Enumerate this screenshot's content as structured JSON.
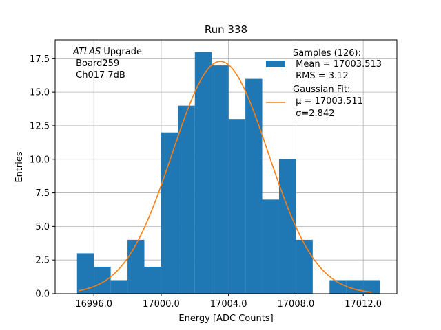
{
  "chart_data": {
    "type": "bar",
    "title": "Run 338",
    "xlabel": "Energy [ADC Counts]",
    "ylabel": "Entries",
    "xlim": [
      16993.7,
      17014.0
    ],
    "ylim": [
      0,
      18.9
    ],
    "grid": true,
    "bin_width": 1.0,
    "xticks": [
      16996.0,
      17000.0,
      17004.0,
      17008.0,
      17012.0
    ],
    "xtick_labels": [
      "16996.0",
      "17000.0",
      "17004.0",
      "17008.0",
      "17012.0"
    ],
    "yticks": [
      0,
      2.5,
      5,
      7.5,
      10,
      12.5,
      15,
      17.5
    ],
    "ytick_labels": [
      "0.0",
      "2.5",
      "5.0",
      "7.5",
      "10.0",
      "12.5",
      "15.0",
      "17.5"
    ],
    "histogram": {
      "name": "Samples (126):",
      "color": "#1f77b4",
      "bin_starts": [
        16995,
        16996,
        16997,
        16998,
        16999,
        17000,
        17001,
        17002,
        17003,
        17004,
        17005,
        17006,
        17007,
        17008,
        17009,
        17010,
        17011,
        17012
      ],
      "counts": [
        3,
        2,
        1,
        4,
        2,
        12,
        14,
        18,
        17,
        13,
        16,
        7,
        10,
        4,
        0,
        1,
        1,
        1
      ]
    },
    "fit": {
      "name": "Gaussian Fit:",
      "color": "#ff7f0e",
      "mu": 17003.511,
      "sigma": 2.842,
      "amplitude": 17.3,
      "x_range": [
        16995.1,
        17012.5
      ]
    },
    "legend": {
      "placement": "top-right",
      "entries": [
        {
          "color": "#1f77b4",
          "lines": [
            "Samples (126):",
            " Mean = 17003.513",
            " RMS = 3.12"
          ]
        },
        {
          "color": "#ff7f0e",
          "lines": [
            "Gaussian Fit:",
            " μ = 17003.511",
            " σ=2.842"
          ]
        }
      ]
    },
    "annotation": {
      "italic": "ATLAS",
      "rest": " Upgrade",
      "line2": " Board259",
      "line3": " Ch017 7dB"
    }
  }
}
